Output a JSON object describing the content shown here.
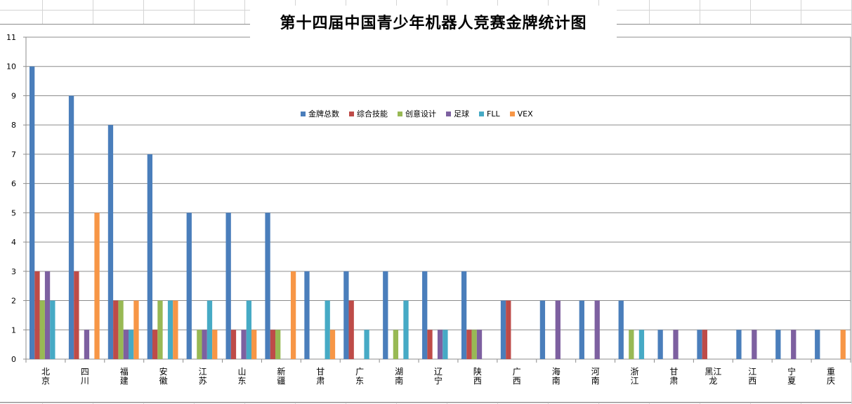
{
  "chart_data": {
    "type": "bar",
    "title": "第十四届中国青少年机器人竞赛金牌统计图",
    "categories": [
      "北京",
      "四川",
      "福建",
      "安徽",
      "江苏",
      "山东",
      "新疆",
      "甘肃",
      "广东",
      "湖南",
      "辽宁",
      "陕西",
      "广西",
      "海南",
      "河南",
      "浙江",
      "甘肃",
      "黑龙江",
      "江西",
      "宁夏",
      "重庆"
    ],
    "category_labels": [
      [
        "北",
        "京"
      ],
      [
        "四",
        "川"
      ],
      [
        "福",
        "建"
      ],
      [
        "安",
        "徽"
      ],
      [
        "江",
        "苏"
      ],
      [
        "山",
        "东"
      ],
      [
        "新",
        "疆"
      ],
      [
        "甘",
        "肃"
      ],
      [
        "广",
        "东"
      ],
      [
        "湖",
        "南"
      ],
      [
        "辽",
        "宁"
      ],
      [
        "陕",
        "西"
      ],
      [
        "广",
        "西"
      ],
      [
        "海",
        "南"
      ],
      [
        "河",
        "南"
      ],
      [
        "浙",
        "江"
      ],
      [
        "甘",
        "肃"
      ],
      [
        "黑江",
        "龙"
      ],
      [
        "江",
        "西"
      ],
      [
        "宁",
        "夏"
      ],
      [
        "重",
        "庆"
      ]
    ],
    "series": [
      {
        "name": "金牌总数",
        "color": "#4a7ebb",
        "values": [
          10,
          9,
          8,
          7,
          5,
          5,
          5,
          3,
          3,
          3,
          3,
          3,
          2,
          2,
          2,
          2,
          1,
          1,
          1,
          1,
          1
        ]
      },
      {
        "name": "综合技能",
        "color": "#be4b48",
        "values": [
          3,
          3,
          2,
          1,
          0,
          1,
          1,
          0,
          2,
          0,
          1,
          1,
          2,
          0,
          0,
          0,
          0,
          1,
          0,
          0,
          0
        ]
      },
      {
        "name": "创意设计",
        "color": "#98b954",
        "values": [
          2,
          0,
          2,
          2,
          1,
          0,
          1,
          0,
          0,
          1,
          0,
          1,
          0,
          0,
          0,
          1,
          0,
          0,
          0,
          0,
          0
        ]
      },
      {
        "name": "足球",
        "color": "#7d60a0",
        "values": [
          3,
          1,
          1,
          0,
          1,
          1,
          0,
          0,
          0,
          0,
          1,
          1,
          0,
          2,
          2,
          0,
          1,
          0,
          1,
          1,
          0
        ]
      },
      {
        "name": "FLL",
        "color": "#46aac5",
        "values": [
          2,
          0,
          1,
          2,
          2,
          2,
          0,
          2,
          1,
          2,
          1,
          0,
          0,
          0,
          0,
          1,
          0,
          0,
          0,
          0,
          0
        ]
      },
      {
        "name": "VEX",
        "color": "#f79646",
        "values": [
          0,
          5,
          2,
          2,
          1,
          1,
          3,
          1,
          0,
          0,
          0,
          0,
          0,
          0,
          0,
          0,
          0,
          0,
          0,
          0,
          1
        ]
      }
    ],
    "ylim": [
      0,
      11
    ],
    "yticks": [
      "0",
      "1",
      "2",
      "3",
      "4",
      "5",
      "6",
      "7",
      "8",
      "9",
      "10",
      "11"
    ],
    "grid": true,
    "legend_position": "inside-top-center"
  }
}
